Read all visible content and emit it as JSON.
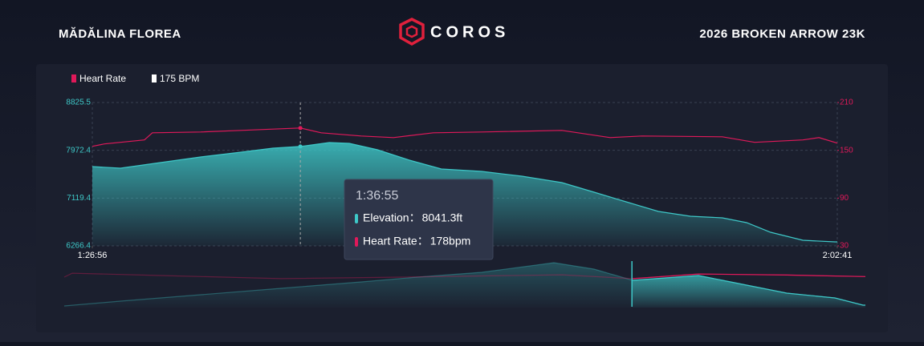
{
  "header": {
    "athlete": "MĂDĂLINA FLOREA",
    "logo": "COROS",
    "event": "2026 BROKEN ARROW 23K"
  },
  "chart_data": [
    {
      "type": "area",
      "legend": [
        {
          "label": "Heart Rate",
          "color": "#e0195a"
        },
        {
          "label": "175 BPM",
          "color": "#ffffff"
        }
      ],
      "xlim": [
        5216,
        7361
      ],
      "xticks": [
        {
          "value": 5216,
          "label": "1:26:56"
        },
        {
          "value": 7361,
          "label": "2:02:41"
        }
      ],
      "ylim": [
        6266.4,
        8825.5
      ],
      "yticks": [
        6266.4,
        7119.4,
        7972.4,
        8825.5
      ],
      "y2lim": [
        30,
        210
      ],
      "y2ticks": [
        30,
        90,
        150,
        210
      ],
      "grid": true,
      "series": [
        {
          "style": "area",
          "axis": "y",
          "color": "#3ec8c8",
          "x": [
            5216,
            5297,
            5412,
            5528,
            5644,
            5736,
            5815,
            5898,
            5956,
            6037,
            6129,
            6221,
            6337,
            6453,
            6568,
            6661,
            6753,
            6846,
            6938,
            7030,
            7100,
            7169,
            7262,
            7354,
            7361
          ],
          "values": [
            7682,
            7653,
            7753,
            7853,
            7939,
            8011,
            8041.3,
            8111,
            8097,
            7982,
            7796,
            7639,
            7596,
            7510,
            7396,
            7224,
            7053,
            6881,
            6795,
            6767,
            6681,
            6510,
            6367,
            6338,
            6338
          ]
        },
        {
          "style": "line",
          "axis": "y2",
          "color": "#e0195a",
          "x": [
            5216,
            5251,
            5366,
            5389,
            5528,
            5644,
            5815,
            5875,
            5990,
            6083,
            6198,
            6337,
            6568,
            6707,
            6799,
            7030,
            7123,
            7262,
            7308,
            7361
          ],
          "values": [
            155,
            158,
            163,
            172,
            173,
            175,
            178,
            172,
            168,
            166,
            172,
            173,
            175,
            166,
            168,
            167,
            160,
            163,
            166,
            159
          ]
        }
      ],
      "tooltip": {
        "x": {
          "value": 5815,
          "label": "1:36:55"
        },
        "items": [
          {
            "label": "Elevation：",
            "value": 8041.3,
            "value_label": "8041.3ft",
            "axis": "y",
            "color": "#3ec8c8"
          },
          {
            "label": "Heart Rate：",
            "value": 178,
            "value_label": "178bpm",
            "axis": "y2",
            "color": "#e0195a"
          }
        ]
      }
    },
    {
      "type": "navigator",
      "xlim": [
        0,
        7361
      ],
      "ylim": [
        6150,
        9050
      ],
      "y2lim": [
        30,
        210
      ],
      "series": [
        {
          "style": "area",
          "axis": "y",
          "color": "#3ec8c8",
          "x": [
            0,
            516,
            1254,
            1992,
            2729,
            3245,
            3835,
            4499,
            4868,
            5222,
            5827,
            6048,
            6638,
            7081,
            7339,
            7361
          ],
          "values": [
            6250,
            6550,
            6950,
            7350,
            7750,
            8050,
            8350,
            8950,
            8550,
            7850,
            8150,
            7850,
            7050,
            6750,
            6300,
            6300
          ]
        },
        {
          "style": "line",
          "axis": "y2",
          "color": "#e0195a",
          "x": [
            0,
            74,
            885,
            1992,
            3098,
            4573,
            5222,
            5827,
            6638,
            7361
          ],
          "values": [
            148,
            163,
            154,
            142,
            148,
            157,
            142,
            160,
            156,
            150
          ]
        }
      ]
    }
  ]
}
